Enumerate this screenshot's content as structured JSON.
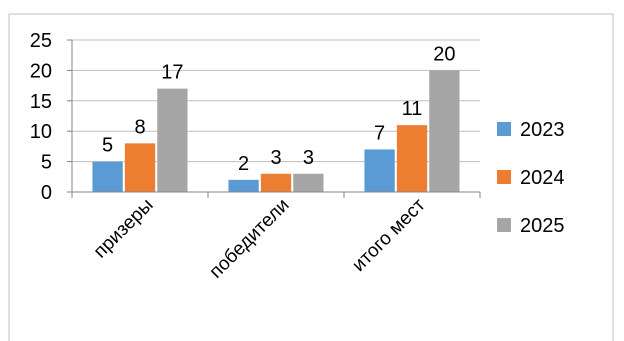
{
  "chart_data": {
    "type": "bar",
    "categories": [
      "призеры",
      "победители",
      "итого мест"
    ],
    "series": [
      {
        "name": "2023",
        "values": [
          5,
          2,
          7
        ],
        "color": "#5b9bd5"
      },
      {
        "name": "2024",
        "values": [
          8,
          3,
          11
        ],
        "color": "#ed7d31"
      },
      {
        "name": "2025",
        "values": [
          17,
          3,
          20
        ],
        "color": "#a5a5a5"
      }
    ],
    "yticks": [
      "0",
      "5",
      "10",
      "15",
      "20",
      "25"
    ],
    "ylim": [
      0,
      25
    ],
    "grid": true,
    "legend_position": "right",
    "show_data_labels": true
  }
}
